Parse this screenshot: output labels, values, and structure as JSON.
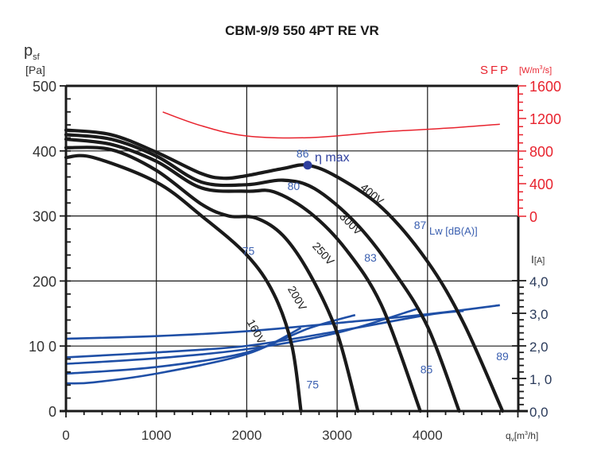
{
  "chart_data": {
    "type": "line",
    "title": "CBM-9/9 550 4PT RE VR",
    "xlabel": "qv[m³/h]",
    "ylabel_main": "psf",
    "ylabel_main_unit": "[Pa]",
    "ylabel_sfp": "SFP",
    "ylabel_sfp_unit": "[W/m³/s]",
    "ylabel_current": "I",
    "ylabel_current_unit": "[A]",
    "xlim": [
      0,
      5050
    ],
    "ylim": [
      0,
      500
    ],
    "sfp_lim": [
      0,
      1600
    ],
    "current_lim": [
      0,
      4.0
    ],
    "grid": true,
    "x_ticks": [
      0,
      1000,
      2000,
      3000,
      4000
    ],
    "x_tick_labels": [
      "0",
      "1000",
      "2000",
      "3000",
      "4000"
    ],
    "y_ticks": [
      0,
      100,
      200,
      300,
      400,
      500
    ],
    "y_tick_labels": [
      "0",
      "10 0",
      "200",
      "300",
      "400",
      "500"
    ],
    "sfp_ticks": [
      0,
      400,
      800,
      1200,
      1600
    ],
    "sfp_tick_labels": [
      "0",
      "400",
      "800",
      "1200",
      "1600"
    ],
    "current_ticks": [
      0,
      1,
      2,
      3,
      4
    ],
    "current_tick_labels": [
      "0,0",
      "1, 0",
      "2,0",
      "3,0",
      "4,0"
    ],
    "pressure_series": [
      {
        "name": "400V",
        "points": [
          [
            0,
            432
          ],
          [
            500,
            425
          ],
          [
            1000,
            398
          ],
          [
            1500,
            365
          ],
          [
            1750,
            358
          ],
          [
            2000,
            362
          ],
          [
            2400,
            373
          ],
          [
            2674,
            378
          ],
          [
            3000,
            360
          ],
          [
            3500,
            312
          ],
          [
            4000,
            230
          ],
          [
            4400,
            135
          ],
          [
            4830,
            0
          ]
        ]
      },
      {
        "name": "300V",
        "points": [
          [
            0,
            425
          ],
          [
            500,
            418
          ],
          [
            1000,
            392
          ],
          [
            1500,
            352
          ],
          [
            2000,
            348
          ],
          [
            2400,
            355
          ],
          [
            2750,
            342
          ],
          [
            3200,
            290
          ],
          [
            3600,
            220
          ],
          [
            4000,
            130
          ],
          [
            4350,
            0
          ]
        ]
      },
      {
        "name": "250V",
        "points": [
          [
            0,
            418
          ],
          [
            500,
            410
          ],
          [
            1000,
            384
          ],
          [
            1500,
            343
          ],
          [
            2000,
            338
          ],
          [
            2300,
            337
          ],
          [
            2700,
            305
          ],
          [
            3100,
            248
          ],
          [
            3500,
            160
          ],
          [
            3920,
            0
          ]
        ]
      },
      {
        "name": "200V",
        "points": [
          [
            0,
            405
          ],
          [
            500,
            402
          ],
          [
            1000,
            370
          ],
          [
            1500,
            318
          ],
          [
            1800,
            300
          ],
          [
            2100,
            297
          ],
          [
            2400,
            270
          ],
          [
            2700,
            210
          ],
          [
            3000,
            120
          ],
          [
            3230,
            0
          ]
        ]
      },
      {
        "name": "160V",
        "points": [
          [
            0,
            390
          ],
          [
            300,
            390
          ],
          [
            1000,
            352
          ],
          [
            1500,
            300
          ],
          [
            2000,
            240
          ],
          [
            2300,
            180
          ],
          [
            2500,
            100
          ],
          [
            2600,
            0
          ]
        ]
      }
    ],
    "current_series": [
      {
        "name": "400V",
        "points": [
          [
            0,
            2.22
          ],
          [
            1000,
            2.3
          ],
          [
            2000,
            2.45
          ],
          [
            3000,
            2.7
          ],
          [
            4000,
            2.97
          ],
          [
            4800,
            3.25
          ]
        ]
      },
      {
        "name": "300V",
        "points": [
          [
            0,
            1.65
          ],
          [
            1000,
            1.8
          ],
          [
            2000,
            2.0
          ],
          [
            3000,
            2.45
          ],
          [
            4000,
            2.95
          ],
          [
            4400,
            3.07
          ]
        ]
      },
      {
        "name": "250V",
        "points": [
          [
            0,
            1.45
          ],
          [
            1000,
            1.62
          ],
          [
            2000,
            1.9
          ],
          [
            3000,
            2.4
          ],
          [
            3900,
            3.15
          ]
        ]
      },
      {
        "name": "200V",
        "points": [
          [
            0,
            1.15
          ],
          [
            1000,
            1.35
          ],
          [
            2000,
            1.8
          ],
          [
            2700,
            2.55
          ],
          [
            3200,
            2.95
          ]
        ]
      },
      {
        "name": "160V",
        "points": [
          [
            0,
            0.85
          ],
          [
            300,
            0.88
          ],
          [
            1000,
            1.15
          ],
          [
            2000,
            1.75
          ],
          [
            2600,
            2.55
          ]
        ]
      }
    ],
    "sfp_series": {
      "name": "SFP",
      "points": [
        [
          1070,
          1280
        ],
        [
          1500,
          1110
        ],
        [
          2000,
          985
        ],
        [
          2700,
          965
        ],
        [
          3500,
          1035
        ],
        [
          4200,
          1080
        ],
        [
          4800,
          1130
        ]
      ]
    },
    "eta_max": {
      "label": "η max",
      "q": 2674,
      "p": 378
    },
    "voltage_labels": [
      "400V",
      "300V",
      "250V",
      "200V",
      "160V"
    ],
    "sound_labels": [
      {
        "text": "86",
        "q": 2550,
        "p": 390
      },
      {
        "text": "80",
        "q": 2450,
        "p": 340
      },
      {
        "text": "75",
        "q": 1950,
        "p": 240
      },
      {
        "text": "83",
        "q": 3300,
        "p": 230
      },
      {
        "text": "87",
        "q": 3850,
        "p": 280
      },
      {
        "text": "75",
        "q": 2660,
        "p": 35
      },
      {
        "text": "85",
        "q": 3920,
        "p": 58
      },
      {
        "text": "89",
        "q": 4760,
        "p": 78
      }
    ],
    "sound_unit": "Lw [dB(A)]",
    "colors": {
      "pressure": "#1a1a1a",
      "current": "#1f4fa6",
      "sfp": "#e8232e",
      "labels": "#3a5fb0"
    }
  }
}
